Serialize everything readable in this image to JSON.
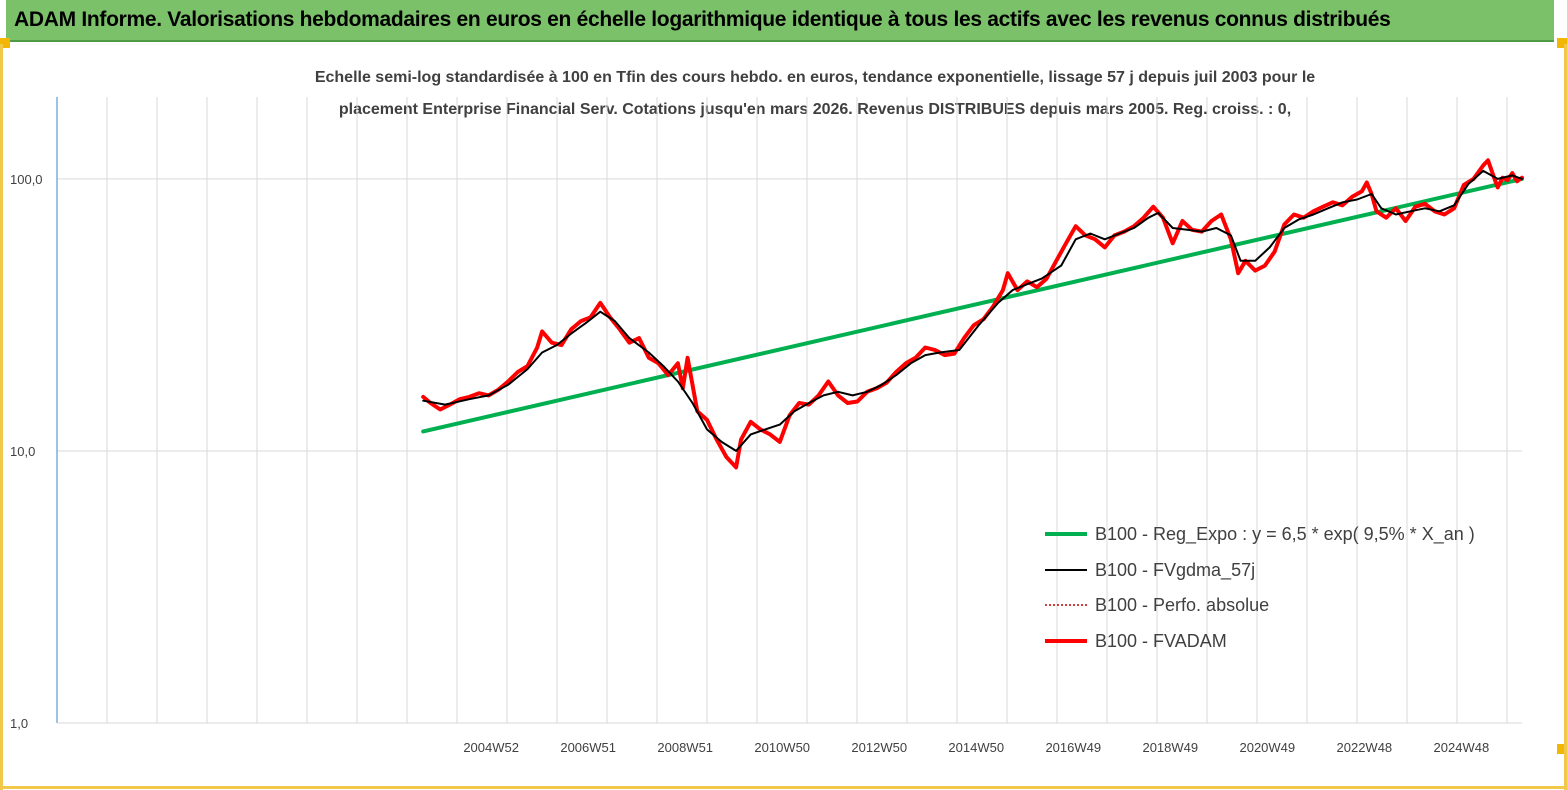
{
  "banner": {
    "title": "ADAM Informe. Valorisations hebdomadaires en euros en échelle logarithmique identique à tous les actifs avec les revenus connus distribués",
    "color": "#7bc16a"
  },
  "chart_data": {
    "type": "line",
    "title_line1": "Echelle semi-log standardisée à 100 en Tfin des cours hebdo. en euros, tendance exponentielle, lissage 57 j depuis juil 2003 pour le",
    "title_line2": "placement Enterprise Financial Serv. Cotations jusqu'en mars 2026. Revenus DISTRIBUES depuis mars 2005.  Reg. croiss. : 0,",
    "yscale": "log",
    "ylim": [
      1,
      200
    ],
    "y_ticks": [
      {
        "value": 1,
        "label": "1,0"
      },
      {
        "value": 10,
        "label": "10,0"
      },
      {
        "value": 100,
        "label": "100,0"
      }
    ],
    "x_range": [
      1996.0,
      2026.2
    ],
    "x_ticks": [
      {
        "x": 2004.95,
        "label": "2004W52"
      },
      {
        "x": 2006.95,
        "label": "2006W51"
      },
      {
        "x": 2008.95,
        "label": "2008W51"
      },
      {
        "x": 2010.95,
        "label": "2010W50"
      },
      {
        "x": 2012.95,
        "label": "2012W50"
      },
      {
        "x": 2014.95,
        "label": "2014W50"
      },
      {
        "x": 2016.95,
        "label": "2016W49"
      },
      {
        "x": 2018.95,
        "label": "2018W49"
      },
      {
        "x": 2020.95,
        "label": "2020W49"
      },
      {
        "x": 2022.95,
        "label": "2022W48"
      },
      {
        "x": 2024.95,
        "label": "2024W48"
      }
    ],
    "grid": "vertical",
    "legend_position": "bottom-right",
    "series": [
      {
        "name": "B100 - Reg_Expo : y = 6,5 * exp( 9,5% *  X_an )",
        "color": "#00b050",
        "style": "solid-thick",
        "points": [
          [
            2003.55,
            11.8
          ],
          [
            2026.2,
            100
          ]
        ]
      },
      {
        "name": "B100 - FVgdma_57j",
        "color": "#000000",
        "style": "solid",
        "points": [
          [
            2003.55,
            15.3
          ],
          [
            2004.0,
            14.8
          ],
          [
            2004.5,
            15.5
          ],
          [
            2004.9,
            16.0
          ],
          [
            2005.3,
            17.5
          ],
          [
            2005.7,
            20.0
          ],
          [
            2006.0,
            23.0
          ],
          [
            2006.3,
            24.5
          ],
          [
            2006.6,
            27.0
          ],
          [
            2006.9,
            29.5
          ],
          [
            2007.2,
            32.5
          ],
          [
            2007.5,
            30.0
          ],
          [
            2007.8,
            26.0
          ],
          [
            2008.2,
            23.0
          ],
          [
            2008.5,
            20.5
          ],
          [
            2008.8,
            18.0
          ],
          [
            2009.1,
            15.0
          ],
          [
            2009.4,
            12.0
          ],
          [
            2009.7,
            10.8
          ],
          [
            2010.0,
            10.0
          ],
          [
            2010.3,
            11.5
          ],
          [
            2010.6,
            12.0
          ],
          [
            2010.9,
            12.5
          ],
          [
            2011.2,
            14.0
          ],
          [
            2011.5,
            15.0
          ],
          [
            2011.8,
            16.0
          ],
          [
            2012.1,
            16.5
          ],
          [
            2012.4,
            16.0
          ],
          [
            2012.7,
            16.5
          ],
          [
            2013.0,
            17.5
          ],
          [
            2013.3,
            19.0
          ],
          [
            2013.6,
            21.0
          ],
          [
            2013.9,
            22.5
          ],
          [
            2014.2,
            23.0
          ],
          [
            2014.6,
            23.5
          ],
          [
            2015.0,
            29.0
          ],
          [
            2015.4,
            35.0
          ],
          [
            2015.7,
            39.0
          ],
          [
            2016.0,
            41.0
          ],
          [
            2016.3,
            43.0
          ],
          [
            2016.7,
            48.0
          ],
          [
            2017.0,
            60.0
          ],
          [
            2017.3,
            63.0
          ],
          [
            2017.6,
            60.0
          ],
          [
            2017.9,
            63.0
          ],
          [
            2018.2,
            66.0
          ],
          [
            2018.5,
            72.0
          ],
          [
            2018.7,
            75.0
          ],
          [
            2019.0,
            66.0
          ],
          [
            2019.3,
            65.0
          ],
          [
            2019.6,
            64.0
          ],
          [
            2019.9,
            66.0
          ],
          [
            2020.2,
            62.0
          ],
          [
            2020.4,
            50.0
          ],
          [
            2020.7,
            50.0
          ],
          [
            2021.0,
            56.0
          ],
          [
            2021.3,
            66.0
          ],
          [
            2021.6,
            71.0
          ],
          [
            2021.9,
            74.0
          ],
          [
            2022.2,
            78.0
          ],
          [
            2022.5,
            82.0
          ],
          [
            2022.8,
            84.0
          ],
          [
            2023.1,
            88.0
          ],
          [
            2023.3,
            78.0
          ],
          [
            2023.6,
            74.0
          ],
          [
            2023.9,
            76.0
          ],
          [
            2024.2,
            78.0
          ],
          [
            2024.5,
            76.0
          ],
          [
            2024.8,
            80.0
          ],
          [
            2025.1,
            96.0
          ],
          [
            2025.4,
            107.0
          ],
          [
            2025.7,
            100.0
          ],
          [
            2026.0,
            103.0
          ],
          [
            2026.2,
            100.0
          ]
        ]
      },
      {
        "name": "B100 - Perfo. absolue",
        "color": "#c00000",
        "style": "dotted",
        "points": []
      },
      {
        "name": "B100 - FVADAM",
        "color": "#ff0000",
        "style": "solid-thick",
        "points": [
          [
            2003.55,
            15.8
          ],
          [
            2003.7,
            15.0
          ],
          [
            2003.9,
            14.2
          ],
          [
            2004.1,
            14.8
          ],
          [
            2004.3,
            15.5
          ],
          [
            2004.5,
            15.8
          ],
          [
            2004.7,
            16.3
          ],
          [
            2004.9,
            16.0
          ],
          [
            2005.1,
            16.8
          ],
          [
            2005.3,
            18.0
          ],
          [
            2005.5,
            19.5
          ],
          [
            2005.7,
            20.5
          ],
          [
            2005.9,
            24.0
          ],
          [
            2006.0,
            27.5
          ],
          [
            2006.2,
            25.0
          ],
          [
            2006.4,
            24.5
          ],
          [
            2006.6,
            28.0
          ],
          [
            2006.8,
            30.0
          ],
          [
            2007.0,
            31.0
          ],
          [
            2007.2,
            35.0
          ],
          [
            2007.4,
            31.0
          ],
          [
            2007.6,
            28.0
          ],
          [
            2007.8,
            25.0
          ],
          [
            2008.0,
            26.0
          ],
          [
            2008.2,
            22.0
          ],
          [
            2008.4,
            21.0
          ],
          [
            2008.6,
            19.0
          ],
          [
            2008.8,
            21.0
          ],
          [
            2008.9,
            17.0
          ],
          [
            2009.0,
            22.0
          ],
          [
            2009.2,
            14.0
          ],
          [
            2009.4,
            13.0
          ],
          [
            2009.6,
            11.0
          ],
          [
            2009.8,
            9.5
          ],
          [
            2010.0,
            8.7
          ],
          [
            2010.1,
            11.0
          ],
          [
            2010.3,
            12.8
          ],
          [
            2010.5,
            12.0
          ],
          [
            2010.7,
            11.5
          ],
          [
            2010.9,
            10.8
          ],
          [
            2011.1,
            13.5
          ],
          [
            2011.3,
            15.0
          ],
          [
            2011.5,
            14.8
          ],
          [
            2011.7,
            16.0
          ],
          [
            2011.9,
            18.0
          ],
          [
            2012.1,
            16.0
          ],
          [
            2012.3,
            15.0
          ],
          [
            2012.5,
            15.2
          ],
          [
            2012.7,
            16.5
          ],
          [
            2012.9,
            17.0
          ],
          [
            2013.1,
            17.8
          ],
          [
            2013.3,
            19.5
          ],
          [
            2013.5,
            21.0
          ],
          [
            2013.7,
            22.0
          ],
          [
            2013.9,
            24.0
          ],
          [
            2014.1,
            23.5
          ],
          [
            2014.3,
            22.5
          ],
          [
            2014.5,
            22.8
          ],
          [
            2014.7,
            26.0
          ],
          [
            2014.9,
            29.0
          ],
          [
            2015.1,
            30.5
          ],
          [
            2015.3,
            34.0
          ],
          [
            2015.5,
            39.0
          ],
          [
            2015.6,
            45.0
          ],
          [
            2015.8,
            39.0
          ],
          [
            2016.0,
            42.0
          ],
          [
            2016.2,
            40.0
          ],
          [
            2016.4,
            43.0
          ],
          [
            2016.6,
            50.0
          ],
          [
            2016.8,
            58.0
          ],
          [
            2017.0,
            67.0
          ],
          [
            2017.2,
            62.0
          ],
          [
            2017.4,
            60.0
          ],
          [
            2017.6,
            56.0
          ],
          [
            2017.8,
            62.0
          ],
          [
            2018.0,
            64.0
          ],
          [
            2018.2,
            67.0
          ],
          [
            2018.4,
            72.0
          ],
          [
            2018.6,
            79.0
          ],
          [
            2018.8,
            72.0
          ],
          [
            2019.0,
            58.0
          ],
          [
            2019.2,
            70.0
          ],
          [
            2019.4,
            65.0
          ],
          [
            2019.6,
            64.0
          ],
          [
            2019.8,
            70.0
          ],
          [
            2020.0,
            74.0
          ],
          [
            2020.2,
            60.0
          ],
          [
            2020.35,
            45.0
          ],
          [
            2020.5,
            50.0
          ],
          [
            2020.7,
            46.0
          ],
          [
            2020.9,
            48.0
          ],
          [
            2021.1,
            54.0
          ],
          [
            2021.3,
            68.0
          ],
          [
            2021.5,
            74.0
          ],
          [
            2021.7,
            72.0
          ],
          [
            2021.9,
            76.0
          ],
          [
            2022.1,
            79.0
          ],
          [
            2022.3,
            82.0
          ],
          [
            2022.5,
            80.0
          ],
          [
            2022.7,
            86.0
          ],
          [
            2022.9,
            90.0
          ],
          [
            2023.0,
            97.0
          ],
          [
            2023.1,
            88.0
          ],
          [
            2023.2,
            76.0
          ],
          [
            2023.4,
            72.0
          ],
          [
            2023.6,
            78.0
          ],
          [
            2023.8,
            70.0
          ],
          [
            2024.0,
            79.0
          ],
          [
            2024.2,
            81.0
          ],
          [
            2024.4,
            76.0
          ],
          [
            2024.6,
            74.0
          ],
          [
            2024.8,
            78.0
          ],
          [
            2025.0,
            95.0
          ],
          [
            2025.2,
            100.0
          ],
          [
            2025.4,
            112.0
          ],
          [
            2025.5,
            117.0
          ],
          [
            2025.6,
            104.0
          ],
          [
            2025.7,
            93.0
          ],
          [
            2025.8,
            101.0
          ],
          [
            2025.9,
            99.0
          ],
          [
            2026.0,
            105.0
          ],
          [
            2026.1,
            98.0
          ],
          [
            2026.2,
            101.0
          ]
        ]
      }
    ]
  }
}
